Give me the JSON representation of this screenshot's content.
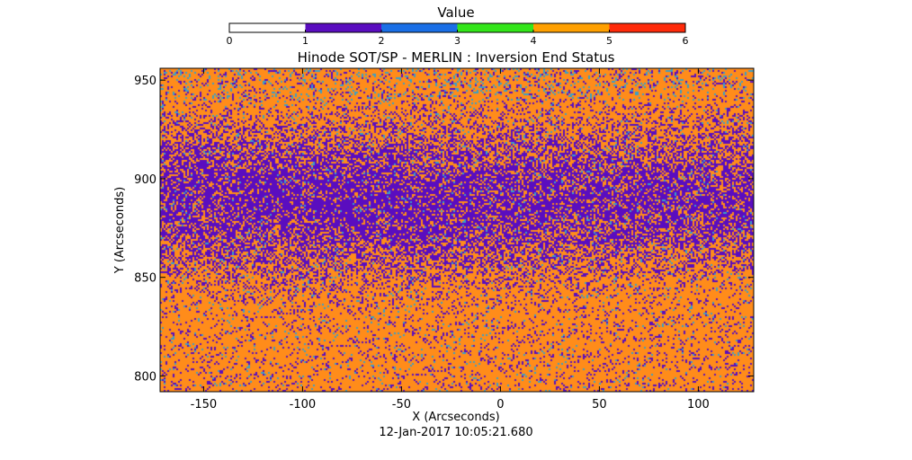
{
  "colorbar": {
    "label": "Value",
    "ticks": [
      "0",
      "1",
      "2",
      "3",
      "4",
      "5",
      "6"
    ],
    "segments": [
      {
        "from": 0,
        "to": 1,
        "color": "#ffffff"
      },
      {
        "from": 1,
        "to": 2,
        "color": "#5a0dbf"
      },
      {
        "from": 2,
        "to": 3,
        "color": "#1a6fe6"
      },
      {
        "from": 3,
        "to": 4,
        "color": "#33e61a"
      },
      {
        "from": 4,
        "to": 5,
        "color": "#ffa000"
      },
      {
        "from": 5,
        "to": 6,
        "color": "#ff2a0a"
      }
    ]
  },
  "chart_data": {
    "type": "heatmap",
    "title": "Hinode SOT/SP - MERLIN : Inversion End Status",
    "xlabel": "X (Arcseconds)",
    "ylabel": "Y (Arcseconds)",
    "xlim": [
      -172,
      128
    ],
    "ylim": [
      792,
      956
    ],
    "xticks": [
      "-150",
      "-100",
      "-50",
      "0",
      "50",
      "100"
    ],
    "yticks": [
      "800",
      "850",
      "900",
      "950"
    ],
    "dominant_values": [
      1,
      4
    ],
    "sparse_values": [
      2
    ],
    "value_colors": {
      "1": "#5a0dbf",
      "2": "#3a9ec8",
      "4": "#ff8c1a"
    },
    "description": "Speckled map of inversion end status: mostly value 1 (purple) in the central band around Y 860-920, mostly value 4 (orange) toward the bottom and top edges, with scattered value 2 (light blue) pixels."
  },
  "footer": {
    "timestamp": "12-Jan-2017 10:05:21.680"
  }
}
